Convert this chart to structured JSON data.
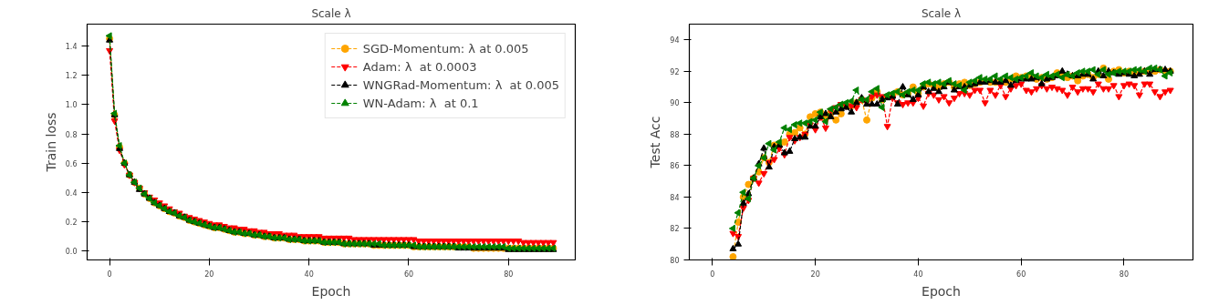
{
  "chart_data": [
    {
      "type": "line",
      "title": "Scale λ",
      "xlabel": "Epoch",
      "ylabel": "Train loss",
      "xlim": [
        -4.5,
        93.4
      ],
      "ylim": [
        -0.06,
        1.55
      ],
      "xticks": [
        0,
        20,
        40,
        60,
        80
      ],
      "yticks": [
        {
          "value": 0,
          "label": "0.0"
        },
        {
          "value": 0.2,
          "label": "0.2"
        },
        {
          "value": 0.4,
          "label": "0.4"
        },
        {
          "value": 0.6,
          "label": "0.6"
        },
        {
          "value": 0.8,
          "label": "0.8"
        },
        {
          "value": 1.0,
          "label": "1.0"
        },
        {
          "value": 1.2,
          "label": "1.2"
        },
        {
          "value": 1.4,
          "label": "1.4"
        }
      ],
      "grid": false,
      "legend": "top right",
      "line_style": "dashed",
      "x": [
        0,
        1,
        2,
        3,
        4,
        5,
        6,
        7,
        8,
        9,
        10,
        11,
        12,
        13,
        14,
        15,
        16,
        17,
        18,
        19,
        20,
        21,
        22,
        23,
        24,
        25,
        26,
        27,
        28,
        29,
        30,
        31,
        32,
        33,
        34,
        35,
        36,
        37,
        38,
        39,
        40,
        41,
        42,
        43,
        44,
        45,
        46,
        47,
        48,
        49,
        50,
        51,
        52,
        53,
        54,
        55,
        56,
        57,
        58,
        59,
        60,
        61,
        62,
        63,
        64,
        65,
        66,
        67,
        68,
        69,
        70,
        71,
        72,
        73,
        74,
        75,
        76,
        77,
        78,
        79,
        80,
        81,
        82,
        83,
        84,
        85,
        86,
        87,
        88,
        89
      ],
      "series": [
        {
          "name": "SGD-Momentum: λ at 0.005",
          "color": "#ffa500",
          "marker": "circle",
          "values": [
            1.45,
            0.93,
            0.71,
            0.6,
            0.52,
            0.47,
            0.43,
            0.39,
            0.36,
            0.33,
            0.31,
            0.29,
            0.27,
            0.26,
            0.24,
            0.23,
            0.21,
            0.2,
            0.19,
            0.18,
            0.17,
            0.16,
            0.16,
            0.15,
            0.14,
            0.13,
            0.13,
            0.12,
            0.12,
            0.11,
            0.11,
            0.1,
            0.1,
            0.09,
            0.09,
            0.09,
            0.08,
            0.08,
            0.08,
            0.07,
            0.07,
            0.07,
            0.07,
            0.06,
            0.06,
            0.06,
            0.06,
            0.05,
            0.05,
            0.05,
            0.05,
            0.05,
            0.05,
            0.04,
            0.04,
            0.04,
            0.04,
            0.04,
            0.04,
            0.04,
            0.04,
            0.03,
            0.03,
            0.03,
            0.03,
            0.03,
            0.03,
            0.03,
            0.03,
            0.03,
            0.03,
            0.03,
            0.03,
            0.02,
            0.02,
            0.02,
            0.02,
            0.02,
            0.02,
            0.02,
            0.02,
            0.02,
            0.02,
            0.02,
            0.02,
            0.02,
            0.02,
            0.02,
            0.02,
            0.02
          ]
        },
        {
          "name": "Adam: λ  at 0.0003",
          "color": "#ff0000",
          "marker": "triangle_down",
          "values": [
            1.37,
            0.89,
            0.69,
            0.59,
            0.52,
            0.47,
            0.43,
            0.4,
            0.37,
            0.35,
            0.33,
            0.31,
            0.29,
            0.27,
            0.26,
            0.24,
            0.23,
            0.22,
            0.21,
            0.2,
            0.19,
            0.18,
            0.18,
            0.17,
            0.16,
            0.16,
            0.15,
            0.15,
            0.14,
            0.14,
            0.13,
            0.13,
            0.12,
            0.12,
            0.12,
            0.11,
            0.11,
            0.11,
            0.1,
            0.1,
            0.1,
            0.1,
            0.1,
            0.09,
            0.09,
            0.09,
            0.09,
            0.09,
            0.09,
            0.08,
            0.08,
            0.08,
            0.08,
            0.08,
            0.08,
            0.08,
            0.08,
            0.08,
            0.08,
            0.08,
            0.08,
            0.08,
            0.07,
            0.07,
            0.07,
            0.07,
            0.07,
            0.07,
            0.07,
            0.07,
            0.07,
            0.07,
            0.07,
            0.07,
            0.07,
            0.07,
            0.07,
            0.07,
            0.07,
            0.07,
            0.07,
            0.07,
            0.07,
            0.06,
            0.06,
            0.06,
            0.06,
            0.06,
            0.06,
            0.06
          ]
        },
        {
          "name": "WNGRad-Momentum: λ  at 0.005",
          "color": "#000000",
          "marker": "triangle",
          "values": [
            1.44,
            0.93,
            0.7,
            0.6,
            0.52,
            0.47,
            0.42,
            0.39,
            0.36,
            0.33,
            0.31,
            0.29,
            0.27,
            0.26,
            0.24,
            0.23,
            0.21,
            0.2,
            0.19,
            0.18,
            0.17,
            0.16,
            0.16,
            0.15,
            0.14,
            0.13,
            0.13,
            0.12,
            0.12,
            0.11,
            0.11,
            0.1,
            0.1,
            0.09,
            0.09,
            0.09,
            0.08,
            0.08,
            0.08,
            0.07,
            0.07,
            0.07,
            0.07,
            0.06,
            0.06,
            0.06,
            0.06,
            0.05,
            0.05,
            0.05,
            0.05,
            0.05,
            0.05,
            0.04,
            0.04,
            0.04,
            0.04,
            0.04,
            0.04,
            0.04,
            0.04,
            0.03,
            0.03,
            0.03,
            0.03,
            0.03,
            0.03,
            0.03,
            0.03,
            0.03,
            0.02,
            0.02,
            0.02,
            0.02,
            0.02,
            0.02,
            0.02,
            0.02,
            0.02,
            0.02,
            0.01,
            0.01,
            0.01,
            0.01,
            0.01,
            0.01,
            0.01,
            0.01,
            0.01,
            0.01
          ]
        },
        {
          "name": "WN-Adam: λ  at 0.1",
          "color": "#008000",
          "marker": "triangle_left",
          "values": [
            1.47,
            0.94,
            0.72,
            0.6,
            0.52,
            0.47,
            0.43,
            0.39,
            0.36,
            0.33,
            0.31,
            0.29,
            0.27,
            0.26,
            0.24,
            0.23,
            0.21,
            0.2,
            0.19,
            0.18,
            0.17,
            0.16,
            0.16,
            0.15,
            0.14,
            0.13,
            0.13,
            0.12,
            0.12,
            0.11,
            0.11,
            0.1,
            0.1,
            0.09,
            0.09,
            0.09,
            0.08,
            0.08,
            0.08,
            0.07,
            0.07,
            0.07,
            0.07,
            0.06,
            0.06,
            0.06,
            0.06,
            0.05,
            0.05,
            0.05,
            0.05,
            0.05,
            0.05,
            0.05,
            0.05,
            0.04,
            0.04,
            0.04,
            0.04,
            0.04,
            0.04,
            0.04,
            0.03,
            0.03,
            0.03,
            0.03,
            0.03,
            0.03,
            0.03,
            0.03,
            0.03,
            0.03,
            0.03,
            0.03,
            0.03,
            0.03,
            0.03,
            0.03,
            0.03,
            0.03,
            0.02,
            0.02,
            0.02,
            0.02,
            0.02,
            0.02,
            0.02,
            0.02,
            0.02,
            0.02
          ]
        }
      ]
    },
    {
      "type": "line",
      "title": "Scale λ",
      "xlabel": "Epoch",
      "ylabel": "Test Acc",
      "xlim": [
        -4.5,
        93.4
      ],
      "ylim": [
        80,
        95
      ],
      "xticks": [
        0,
        20,
        40,
        60,
        80
      ],
      "yticks": [
        80,
        82,
        84,
        86,
        88,
        90,
        92,
        94
      ],
      "grid": false,
      "line_style": "dashed",
      "x": [
        4,
        5,
        6,
        7,
        8,
        9,
        10,
        11,
        12,
        13,
        14,
        15,
        16,
        17,
        18,
        19,
        20,
        21,
        22,
        23,
        24,
        25,
        26,
        27,
        28,
        29,
        30,
        31,
        32,
        33,
        34,
        35,
        36,
        37,
        38,
        39,
        40,
        41,
        42,
        43,
        44,
        45,
        46,
        47,
        48,
        49,
        50,
        51,
        52,
        53,
        54,
        55,
        56,
        57,
        58,
        59,
        60,
        61,
        62,
        63,
        64,
        65,
        66,
        67,
        68,
        69,
        70,
        71,
        72,
        73,
        74,
        75,
        76,
        77,
        78,
        79,
        80,
        81,
        82,
        83,
        84,
        85,
        86,
        87,
        88,
        89
      ],
      "series": [
        {
          "color": "#ffa500",
          "marker": "circle",
          "values": [
            80.2,
            82.4,
            84.0,
            84.8,
            85.2,
            85.6,
            86.5,
            86.2,
            87.3,
            87.4,
            87.5,
            88.0,
            88.1,
            88.4,
            88.0,
            89.1,
            89.3,
            89.4,
            89.0,
            89.4,
            88.9,
            89.3,
            89.8,
            89.8,
            90.0,
            90.2,
            88.9,
            90.3,
            90.7,
            90.2,
            90.4,
            90.5,
            90.7,
            90.5,
            90.6,
            91.0,
            90.6,
            91.0,
            91.2,
            91.1,
            91.0,
            91.2,
            91.3,
            91.0,
            91.2,
            91.3,
            91.1,
            91.2,
            91.3,
            91.4,
            91.3,
            91.3,
            91.4,
            91.3,
            91.5,
            91.7,
            91.6,
            91.7,
            91.7,
            91.5,
            91.6,
            91.5,
            91.6,
            91.9,
            91.8,
            91.6,
            91.7,
            91.4,
            91.7,
            91.8,
            91.6,
            91.8,
            92.2,
            91.5,
            92.0,
            92.1,
            91.9,
            92.0,
            91.9,
            91.9,
            92.0,
            92.0,
            92.0,
            92.1,
            92.0,
            92.0
          ]
        },
        {
          "color": "#ff0000",
          "marker": "triangle_down",
          "values": [
            81.7,
            81.5,
            83.3,
            83.8,
            85.2,
            84.9,
            85.5,
            86.2,
            86.4,
            87.1,
            86.7,
            87.8,
            87.6,
            87.8,
            88.0,
            88.6,
            88.3,
            89.1,
            88.4,
            89.5,
            89.7,
            89.9,
            89.8,
            89.8,
            89.7,
            90.2,
            90.0,
            90.4,
            90.5,
            90.4,
            88.5,
            90.3,
            90.0,
            89.9,
            90.0,
            90.0,
            90.3,
            89.8,
            90.6,
            90.5,
            90.2,
            90.4,
            90.0,
            90.3,
            90.6,
            90.6,
            90.5,
            90.8,
            90.8,
            90.0,
            90.8,
            90.5,
            91.1,
            90.4,
            90.9,
            91.1,
            91.2,
            90.8,
            90.7,
            90.9,
            91.1,
            90.9,
            91.0,
            90.9,
            90.8,
            90.5,
            91.0,
            90.7,
            90.9,
            90.9,
            90.7,
            91.2,
            90.9,
            90.9,
            91.1,
            90.4,
            91.1,
            91.2,
            91.1,
            90.5,
            91.2,
            91.2,
            90.7,
            90.4,
            90.7,
            90.8
          ]
        },
        {
          "color": "#000000",
          "marker": "triangle",
          "values": [
            80.7,
            81.0,
            83.6,
            84.2,
            85.2,
            86.1,
            87.1,
            85.9,
            87.2,
            87.3,
            86.8,
            86.9,
            87.7,
            87.8,
            87.8,
            88.5,
            88.5,
            89.1,
            89.3,
            89.1,
            89.4,
            89.6,
            89.7,
            89.4,
            90.0,
            90.3,
            89.9,
            89.9,
            89.9,
            90.2,
            90.3,
            90.4,
            89.9,
            91.0,
            90.5,
            90.2,
            90.5,
            91.0,
            90.7,
            90.9,
            90.7,
            91.0,
            91.3,
            90.8,
            91.0,
            91.0,
            91.1,
            91.2,
            91.3,
            91.3,
            91.4,
            91.3,
            91.3,
            91.4,
            91.1,
            91.4,
            91.5,
            91.5,
            91.5,
            91.6,
            91.2,
            91.5,
            91.6,
            91.7,
            92.0,
            91.8,
            91.7,
            91.7,
            91.8,
            91.8,
            91.5,
            92.0,
            91.7,
            92.0,
            91.9,
            91.8,
            91.9,
            91.8,
            91.7,
            91.8,
            92.0,
            91.8,
            92.1,
            92.1,
            92.1,
            92.0
          ]
        },
        {
          "color": "#008000",
          "marker": "triangle_left",
          "values": [
            82.0,
            83.0,
            84.3,
            83.9,
            85.2,
            86.0,
            86.5,
            87.4,
            87.0,
            87.5,
            88.4,
            88.3,
            88.6,
            88.7,
            88.7,
            88.8,
            88.9,
            89.4,
            88.8,
            89.6,
            89.7,
            89.9,
            90.0,
            90.1,
            90.8,
            90.2,
            90.2,
            90.7,
            90.9,
            89.7,
            90.5,
            90.6,
            90.7,
            90.5,
            90.7,
            90.8,
            90.8,
            91.2,
            91.3,
            91.2,
            91.3,
            91.2,
            91.4,
            91.2,
            91.1,
            90.8,
            91.3,
            91.4,
            91.6,
            91.5,
            91.5,
            91.7,
            91.5,
            91.7,
            91.6,
            91.5,
            91.6,
            91.7,
            91.9,
            91.7,
            91.6,
            91.8,
            91.7,
            91.8,
            91.6,
            91.8,
            91.7,
            91.9,
            92.0,
            92.0,
            92.1,
            91.8,
            92.1,
            91.8,
            91.9,
            92.0,
            92.0,
            92.0,
            92.1,
            92.1,
            92.0,
            92.2,
            92.2,
            92.1,
            91.7,
            91.9
          ]
        }
      ]
    }
  ]
}
